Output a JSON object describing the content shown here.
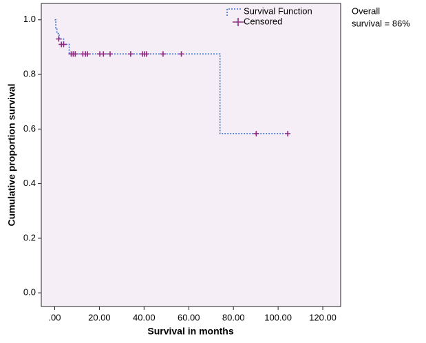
{
  "chart_data": {
    "type": "survival",
    "x_label": "Survival in months",
    "y_label": "Cumulative proportion survival",
    "annotation": [
      "Overall",
      "survival = 86%"
    ],
    "xlim": [
      -6,
      128
    ],
    "ylim": [
      -0.05,
      1.06
    ],
    "xticks": [
      {
        "value": 0,
        "label": ".00"
      },
      {
        "value": 20,
        "label": "20.00"
      },
      {
        "value": 40,
        "label": "40.00"
      },
      {
        "value": 60,
        "label": "60.00"
      },
      {
        "value": 80,
        "label": "80.00"
      },
      {
        "value": 100,
        "label": "100.00"
      },
      {
        "value": 120,
        "label": "120.00"
      }
    ],
    "yticks": [
      {
        "value": 0,
        "label": "0.0"
      },
      0.2,
      0.4,
      0.6,
      0.8,
      {
        "value": 1,
        "label": "1.0"
      }
    ],
    "series": [
      {
        "name": "Survival Function",
        "color": "#3b6fc6",
        "x": [
          0,
          0.5,
          1,
          2,
          4,
          6.5,
          74,
          104
        ],
        "values": [
          1,
          0.97,
          0.95,
          0.93,
          0.91,
          0.875,
          0.583,
          0.583
        ]
      },
      {
        "name": "Censored",
        "color": "#8e2a80",
        "x": [
          1.8,
          3,
          4,
          7.4,
          8.3,
          9.2,
          12.6,
          13.8,
          14.7,
          20.2,
          21.8,
          24.8,
          34,
          39.3,
          40.2,
          41.1,
          48.5,
          56.7,
          90.2,
          104.3
        ],
        "values": [
          0.93,
          0.91,
          0.91,
          0.875,
          0.875,
          0.875,
          0.875,
          0.875,
          0.875,
          0.875,
          0.875,
          0.875,
          0.875,
          0.875,
          0.875,
          0.875,
          0.875,
          0.875,
          0.583,
          0.583
        ]
      }
    ]
  }
}
